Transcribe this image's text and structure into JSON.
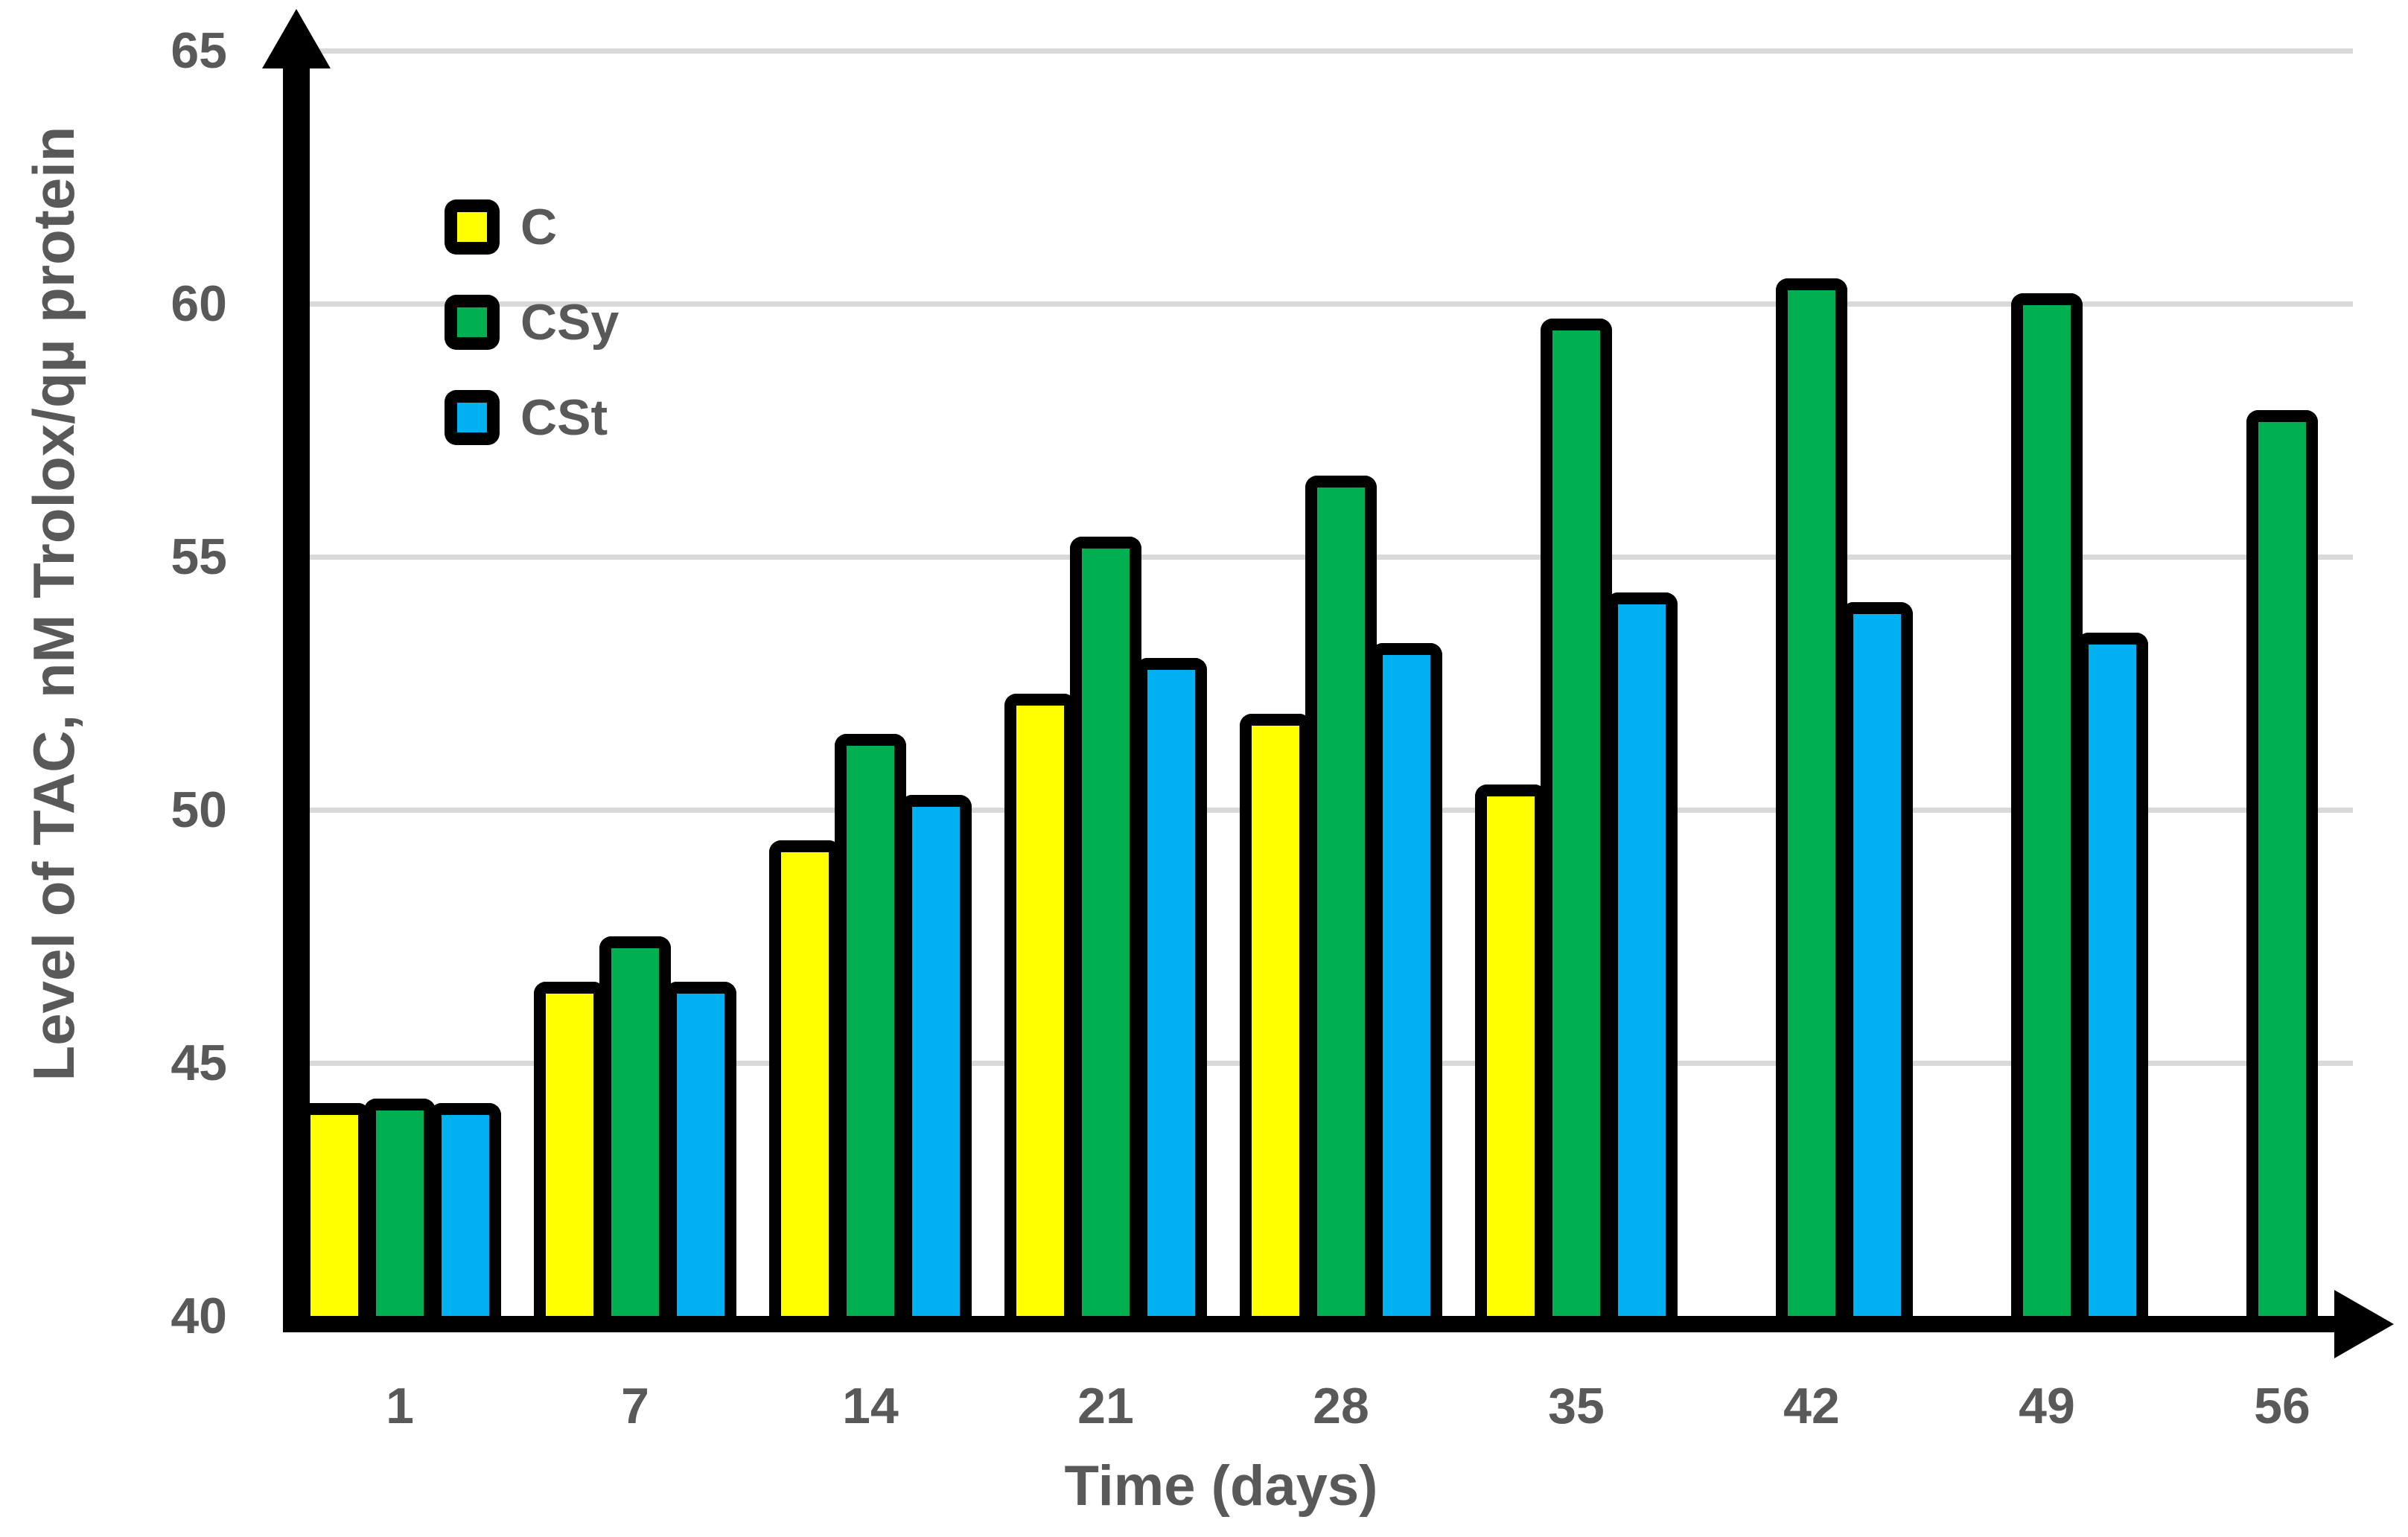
{
  "chart_data": {
    "type": "bar",
    "title": "",
    "xlabel": "Time (days)",
    "ylabel": "Level of TAC, nM Trolox/qµ protein",
    "categories": [
      "1",
      "7",
      "14",
      "21",
      "28",
      "35",
      "42",
      "49",
      "56"
    ],
    "series": [
      {
        "name": "C",
        "color": "#FFFF00",
        "values": [
          44.2,
          46.6,
          49.4,
          52.3,
          51.9,
          50.5,
          null,
          null,
          null
        ]
      },
      {
        "name": "CSy",
        "color": "#00B050",
        "values": [
          44.3,
          47.5,
          51.5,
          55.4,
          56.6,
          59.7,
          60.5,
          60.2,
          57.9
        ]
      },
      {
        "name": "CSt",
        "color": "#00B0F0",
        "values": [
          44.2,
          46.6,
          50.3,
          53.0,
          53.3,
          54.3,
          54.1,
          53.5,
          null
        ]
      }
    ],
    "ylim": [
      40,
      65
    ],
    "yticks": [
      40,
      45,
      50,
      55,
      60,
      65
    ],
    "grid": true,
    "legend_position": "upper-left-inside",
    "legend_entries": [
      "C",
      "CSy",
      "CSt"
    ]
  },
  "style": {
    "text_color": "#595959",
    "gridline_color": "#D9D9D9",
    "axis_color": "#000000",
    "bar_border_color": "#000000",
    "background_color": "#FFFFFF"
  }
}
